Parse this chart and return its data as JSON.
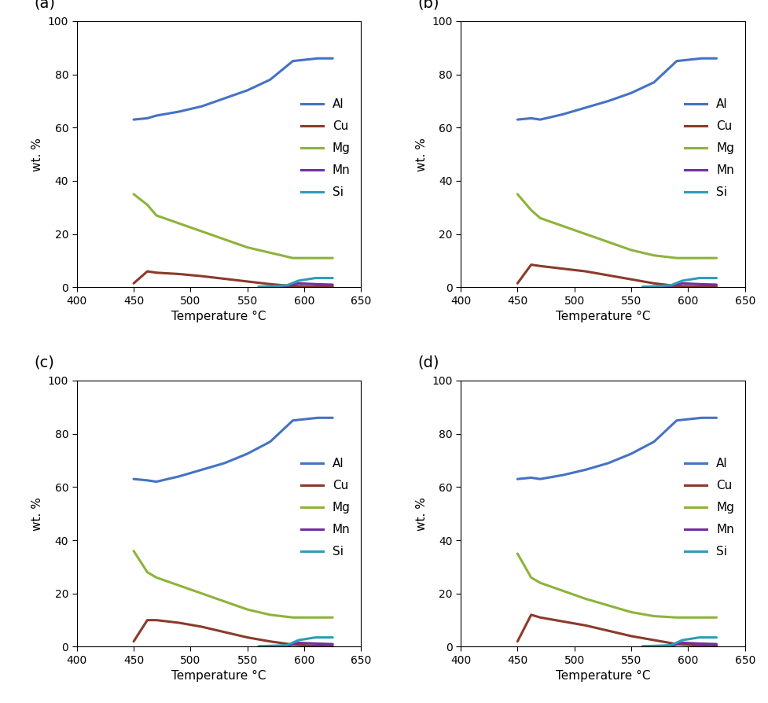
{
  "subplots": [
    {
      "label": "(a)",
      "Al": {
        "x": [
          450,
          462,
          470,
          490,
          510,
          530,
          550,
          570,
          590,
          612,
          625
        ],
        "y": [
          63,
          63.5,
          64.5,
          66,
          68,
          71,
          74,
          78,
          85,
          86,
          86
        ]
      },
      "Cu": {
        "x": [
          450,
          462,
          470,
          490,
          510,
          530,
          550,
          570,
          590,
          612,
          625
        ],
        "y": [
          1.5,
          6,
          5.5,
          5,
          4.2,
          3.2,
          2.2,
          1.2,
          0.5,
          0.3,
          0.3
        ]
      },
      "Mg": {
        "x": [
          450,
          462,
          470,
          490,
          510,
          530,
          550,
          570,
          590,
          612,
          625
        ],
        "y": [
          35,
          31,
          27,
          24,
          21,
          18,
          15,
          13,
          11,
          11,
          11
        ]
      },
      "Mn": {
        "x": [
          560,
          575,
          585,
          595,
          610,
          625
        ],
        "y": [
          0.1,
          0.3,
          0.5,
          1.5,
          1.2,
          1.0
        ]
      },
      "Si": {
        "x": [
          560,
          575,
          585,
          595,
          610,
          625
        ],
        "y": [
          0.2,
          0.5,
          0.8,
          2.5,
          3.5,
          3.5
        ]
      }
    },
    {
      "label": "(b)",
      "Al": {
        "x": [
          450,
          462,
          470,
          490,
          510,
          530,
          550,
          570,
          590,
          612,
          625
        ],
        "y": [
          63,
          63.5,
          63,
          65,
          67.5,
          70,
          73,
          77,
          85,
          86,
          86
        ]
      },
      "Cu": {
        "x": [
          450,
          462,
          470,
          490,
          510,
          530,
          550,
          570,
          590,
          612,
          625
        ],
        "y": [
          1.5,
          8.5,
          8,
          7,
          6,
          4.5,
          3,
          1.5,
          0.5,
          0.3,
          0.3
        ]
      },
      "Mg": {
        "x": [
          450,
          462,
          470,
          490,
          510,
          530,
          550,
          570,
          590,
          612,
          625
        ],
        "y": [
          35,
          29,
          26,
          23,
          20,
          17,
          14,
          12,
          11,
          11,
          11
        ]
      },
      "Mn": {
        "x": [
          560,
          575,
          585,
          595,
          610,
          625
        ],
        "y": [
          0.1,
          0.3,
          0.5,
          1.5,
          1.2,
          1.0
        ]
      },
      "Si": {
        "x": [
          560,
          575,
          585,
          595,
          610,
          625
        ],
        "y": [
          0.2,
          0.5,
          0.8,
          2.5,
          3.5,
          3.5
        ]
      }
    },
    {
      "label": "(c)",
      "Al": {
        "x": [
          450,
          462,
          470,
          490,
          510,
          530,
          550,
          570,
          590,
          612,
          625
        ],
        "y": [
          63,
          62.5,
          62,
          64,
          66.5,
          69,
          72.5,
          77,
          85,
          86,
          86
        ]
      },
      "Cu": {
        "x": [
          450,
          462,
          470,
          490,
          510,
          530,
          550,
          570,
          590,
          612,
          625
        ],
        "y": [
          2,
          10,
          10,
          9,
          7.5,
          5.5,
          3.5,
          2,
          0.8,
          0.3,
          0.3
        ]
      },
      "Mg": {
        "x": [
          450,
          462,
          470,
          490,
          510,
          530,
          550,
          570,
          590,
          612,
          625
        ],
        "y": [
          36,
          28,
          26,
          23,
          20,
          17,
          14,
          12,
          11,
          11,
          11
        ]
      },
      "Mn": {
        "x": [
          560,
          575,
          585,
          595,
          610,
          625
        ],
        "y": [
          0.1,
          0.2,
          0.3,
          1.5,
          1.2,
          1.0
        ]
      },
      "Si": {
        "x": [
          560,
          575,
          585,
          595,
          610,
          625
        ],
        "y": [
          0.2,
          0.4,
          0.6,
          2.5,
          3.5,
          3.5
        ]
      }
    },
    {
      "label": "(d)",
      "Al": {
        "x": [
          450,
          462,
          470,
          490,
          510,
          530,
          550,
          570,
          590,
          612,
          625
        ],
        "y": [
          63,
          63.5,
          63,
          64.5,
          66.5,
          69,
          72.5,
          77,
          85,
          86,
          86
        ]
      },
      "Cu": {
        "x": [
          450,
          462,
          470,
          490,
          510,
          530,
          550,
          570,
          590,
          612,
          625
        ],
        "y": [
          2,
          12,
          11,
          9.5,
          8,
          6,
          4,
          2.5,
          1.0,
          0.4,
          0.4
        ]
      },
      "Mg": {
        "x": [
          450,
          462,
          470,
          490,
          510,
          530,
          550,
          570,
          590,
          612,
          625
        ],
        "y": [
          35,
          26,
          24,
          21,
          18,
          15.5,
          13,
          11.5,
          11,
          11,
          11
        ]
      },
      "Mn": {
        "x": [
          560,
          575,
          585,
          595,
          610,
          625
        ],
        "y": [
          0.1,
          0.2,
          0.3,
          1.5,
          1.2,
          1.0
        ]
      },
      "Si": {
        "x": [
          560,
          575,
          585,
          595,
          610,
          625
        ],
        "y": [
          0.2,
          0.4,
          0.6,
          2.5,
          3.5,
          3.5
        ]
      }
    }
  ],
  "colors": {
    "Al": "#4472C4",
    "Cu": "#8B3A2A",
    "Mg": "#8DB33A",
    "Mn": "#7030A0",
    "Si": "#2E9DB5"
  },
  "xlim": [
    400,
    650
  ],
  "ylim": [
    0,
    100
  ],
  "xticks": [
    400,
    450,
    500,
    550,
    600,
    650
  ],
  "yticks": [
    0,
    20,
    40,
    60,
    80,
    100
  ],
  "xlabel": "Temperature °C",
  "ylabel": "wt. %",
  "legend_elements": [
    "Al",
    "Cu",
    "Mg",
    "Mn",
    "Si"
  ],
  "line_width": 2.2,
  "label_fontsize": 14,
  "tick_fontsize": 10,
  "axis_fontsize": 11,
  "legend_fontsize": 11
}
